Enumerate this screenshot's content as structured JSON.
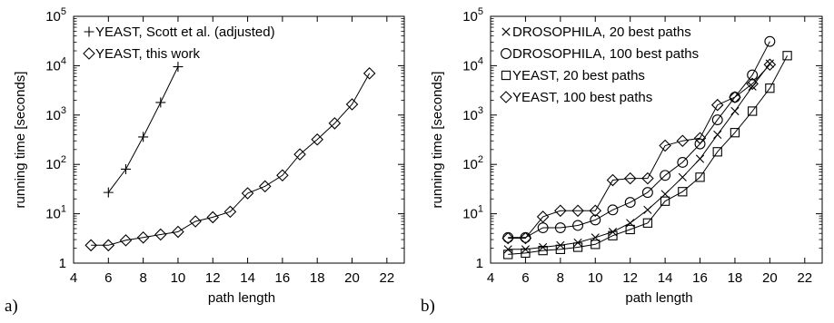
{
  "chart_data": [
    {
      "panel_label": "a)",
      "type": "line",
      "xlabel": "path length",
      "ylabel": "running time [seconds]",
      "xlim": [
        4,
        23
      ],
      "ylim": [
        1,
        100000
      ],
      "log_y": true,
      "x_ticks": [
        4,
        6,
        8,
        10,
        12,
        14,
        16,
        18,
        20,
        22
      ],
      "y_ticks": [
        1,
        10,
        100,
        1000,
        10000,
        100000
      ],
      "y_tick_labels": [
        {
          "base": "1",
          "exp": ""
        },
        {
          "base": "10",
          "exp": "1"
        },
        {
          "base": "10",
          "exp": "2"
        },
        {
          "base": "10",
          "exp": "3"
        },
        {
          "base": "10",
          "exp": "4"
        },
        {
          "base": "10",
          "exp": "5"
        }
      ],
      "legend_position": "top-left",
      "series": [
        {
          "name": "YEAST, Scott et al. (adjusted)",
          "marker": "plus",
          "x": [
            6,
            7,
            8,
            9,
            10
          ],
          "y": [
            27,
            80,
            360,
            1800,
            9500
          ]
        },
        {
          "name": "YEAST, this work",
          "marker": "diamond",
          "x": [
            5,
            6,
            7,
            8,
            9,
            10,
            11,
            12,
            13,
            14,
            15,
            16,
            17,
            18,
            19,
            20,
            21
          ],
          "y": [
            2.3,
            2.3,
            2.9,
            3.3,
            3.8,
            4.3,
            7,
            8.5,
            11,
            26,
            36,
            60,
            160,
            320,
            680,
            1650,
            7000
          ]
        }
      ]
    },
    {
      "panel_label": "b)",
      "type": "line",
      "xlabel": "path length",
      "ylabel": "running time [seconds]",
      "xlim": [
        4,
        23
      ],
      "ylim": [
        1,
        100000
      ],
      "log_y": true,
      "x_ticks": [
        4,
        6,
        8,
        10,
        12,
        14,
        16,
        18,
        20,
        22
      ],
      "y_ticks": [
        1,
        10,
        100,
        1000,
        10000,
        100000
      ],
      "y_tick_labels": [
        {
          "base": "1",
          "exp": ""
        },
        {
          "base": "10",
          "exp": "1"
        },
        {
          "base": "10",
          "exp": "2"
        },
        {
          "base": "10",
          "exp": "3"
        },
        {
          "base": "10",
          "exp": "4"
        },
        {
          "base": "10",
          "exp": "5"
        }
      ],
      "legend_position": "top-left",
      "series": [
        {
          "name": "DROSOPHILA, 20 best paths",
          "marker": "cross",
          "x": [
            5,
            6,
            7,
            8,
            9,
            10,
            11,
            12,
            13,
            14,
            15,
            16,
            17,
            18,
            19,
            20
          ],
          "y": [
            1.9,
            1.9,
            2.1,
            2.3,
            2.6,
            3.3,
            4.3,
            6.5,
            12,
            25,
            55,
            130,
            400,
            1200,
            3800,
            11000
          ]
        },
        {
          "name": "DROSOPHILA, 100 best paths",
          "marker": "circle",
          "x": [
            5,
            6,
            7,
            8,
            9,
            10,
            11,
            12,
            13,
            14,
            15,
            16,
            17,
            18,
            19,
            20
          ],
          "y": [
            3.3,
            3.3,
            5.2,
            5.2,
            5.8,
            7.5,
            12,
            17,
            27,
            60,
            110,
            260,
            800,
            2300,
            6500,
            31000
          ]
        },
        {
          "name": "YEAST, 20 best paths",
          "marker": "square",
          "x": [
            5,
            6,
            7,
            8,
            9,
            10,
            11,
            12,
            13,
            14,
            15,
            16,
            17,
            18,
            19,
            20,
            21
          ],
          "y": [
            1.5,
            1.6,
            1.8,
            1.9,
            2.1,
            2.4,
            3.6,
            4.8,
            6.5,
            18,
            28,
            55,
            180,
            440,
            1200,
            3500,
            16000
          ]
        },
        {
          "name": "YEAST, 100 best paths",
          "marker": "diamond",
          "x": [
            5,
            6,
            7,
            8,
            9,
            10,
            11,
            12,
            13,
            14,
            15,
            16,
            17,
            18,
            19,
            20
          ],
          "y": [
            3.2,
            3.2,
            8.7,
            11.5,
            11.5,
            11.5,
            48,
            52,
            52,
            240,
            300,
            340,
            1600,
            2300,
            4300,
            10500
          ]
        }
      ]
    }
  ]
}
